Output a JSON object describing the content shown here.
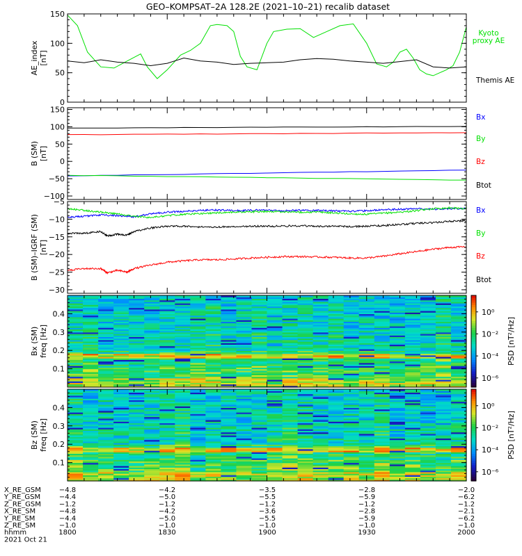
{
  "title": "GEO–KOMPSAT–2A 128.2E (2021–10–21) recalib dataset",
  "colors": {
    "black": "#000000",
    "blue": "#0000ff",
    "green": "#00e000",
    "red": "#ff0000"
  },
  "chart_data": [
    {
      "type": "line",
      "panel": "ae",
      "ylabel": [
        "AE_index",
        "[nT]"
      ],
      "ylim": [
        0,
        150
      ],
      "yticks": [
        "0",
        "50",
        "100",
        "150"
      ],
      "xlim": [
        0,
        120
      ],
      "series": [
        {
          "name": "Kyoto proxy AE",
          "label_lines": [
            "Kyoto",
            "proxy AE"
          ],
          "color": "#00e000",
          "x": [
            0,
            3,
            6,
            10,
            14,
            18,
            22,
            24,
            27,
            30,
            34,
            37,
            40,
            43,
            45,
            48,
            50,
            52,
            54,
            57,
            60,
            62,
            66,
            70,
            74,
            78,
            82,
            86,
            90,
            93,
            96,
            98,
            100,
            102,
            104,
            106,
            108,
            110,
            112,
            114,
            116,
            118,
            120
          ],
          "y": [
            148,
            130,
            85,
            60,
            58,
            70,
            82,
            60,
            40,
            55,
            80,
            88,
            100,
            130,
            132,
            130,
            120,
            78,
            60,
            55,
            100,
            120,
            124,
            125,
            110,
            120,
            130,
            133,
            100,
            65,
            60,
            68,
            85,
            90,
            75,
            55,
            48,
            45,
            50,
            55,
            62,
            85,
            128
          ]
        },
        {
          "name": "Themis AE",
          "label_lines": [
            "Themis AE"
          ],
          "color": "#000000",
          "x": [
            0,
            5,
            10,
            15,
            20,
            25,
            30,
            35,
            40,
            45,
            50,
            55,
            60,
            65,
            70,
            75,
            80,
            85,
            90,
            95,
            100,
            105,
            110,
            115,
            120
          ],
          "y": [
            70,
            67,
            72,
            68,
            66,
            62,
            66,
            75,
            70,
            68,
            64,
            66,
            67,
            68,
            72,
            74,
            73,
            70,
            68,
            66,
            69,
            72,
            60,
            58,
            60
          ]
        }
      ]
    },
    {
      "type": "line",
      "panel": "bsm",
      "ylabel": [
        "B (SM)",
        "[nT]"
      ],
      "ylim": [
        -100,
        150
      ],
      "yticks": [
        "−100",
        "−50",
        "0",
        "50",
        "100",
        "150"
      ],
      "xlim": [
        0,
        120
      ],
      "series": [
        {
          "name": "Bx",
          "color": "#0000ff",
          "x": [
            0,
            120
          ],
          "y": [
            -42,
            -25
          ]
        },
        {
          "name": "By",
          "color": "#00e000",
          "x": [
            0,
            120
          ],
          "y": [
            -40,
            -54
          ]
        },
        {
          "name": "Bz",
          "color": "#ff0000",
          "x": [
            0,
            120
          ],
          "y": [
            77,
            83
          ]
        },
        {
          "name": "Btot",
          "color": "#000000",
          "x": [
            0,
            120
          ],
          "y": [
            96,
            101
          ]
        }
      ]
    },
    {
      "type": "line",
      "panel": "bigrf",
      "ylabel": [
        "B (SM)–IGRF (SM)",
        "[nT]"
      ],
      "ylim": [
        -31,
        -5
      ],
      "yticks": [
        "−30",
        "−25",
        "−20",
        "−15",
        "−10",
        "−5"
      ],
      "xlim": [
        0,
        120
      ],
      "series": [
        {
          "name": "Bx",
          "color": "#0000ff",
          "x": [
            0,
            5,
            10,
            15,
            20,
            25,
            30,
            35,
            40,
            45,
            50,
            55,
            60,
            65,
            70,
            75,
            80,
            85,
            90,
            95,
            100,
            105,
            110,
            115,
            120
          ],
          "y": [
            -9.5,
            -9.2,
            -8.8,
            -9,
            -9.3,
            -8.5,
            -8,
            -7.8,
            -7.5,
            -7.4,
            -7.6,
            -7.5,
            -7.4,
            -7.6,
            -7.5,
            -7.5,
            -7.6,
            -7.8,
            -7.6,
            -7.3,
            -7.2,
            -7,
            -7.2,
            -7,
            -7
          ]
        },
        {
          "name": "By",
          "color": "#00e000",
          "x": [
            0,
            5,
            10,
            15,
            20,
            25,
            30,
            35,
            40,
            45,
            50,
            55,
            60,
            65,
            70,
            75,
            80,
            85,
            90,
            95,
            100,
            105,
            110,
            115,
            120
          ],
          "y": [
            -7,
            -7.5,
            -8,
            -8.5,
            -9.2,
            -9.5,
            -9,
            -8.6,
            -8.4,
            -8.2,
            -8,
            -7.9,
            -7.8,
            -7.9,
            -8,
            -8,
            -8.2,
            -8.5,
            -8.6,
            -8.3,
            -8,
            -7.6,
            -7,
            -6.8,
            -7
          ]
        },
        {
          "name": "Bz",
          "color": "#ff0000",
          "x": [
            0,
            5,
            10,
            12,
            15,
            18,
            20,
            25,
            30,
            35,
            40,
            45,
            50,
            55,
            60,
            65,
            70,
            75,
            80,
            85,
            90,
            95,
            100,
            105,
            110,
            115,
            120
          ],
          "y": [
            -24.5,
            -24,
            -24,
            -25.2,
            -24.5,
            -25,
            -24,
            -23,
            -22.2,
            -21.8,
            -21.5,
            -21.5,
            -21.3,
            -21,
            -20.8,
            -20.6,
            -20.6,
            -20.7,
            -20.8,
            -21,
            -21,
            -20.5,
            -19.8,
            -19.2,
            -18.5,
            -18,
            -17.8
          ]
        },
        {
          "name": "Btot",
          "color": "#000000",
          "x": [
            0,
            5,
            10,
            12,
            15,
            18,
            20,
            25,
            30,
            35,
            40,
            45,
            50,
            55,
            60,
            65,
            70,
            75,
            80,
            85,
            90,
            95,
            100,
            105,
            110,
            115,
            120
          ],
          "y": [
            -14,
            -14,
            -13.5,
            -14.8,
            -14.2,
            -14.5,
            -13.5,
            -12.5,
            -12,
            -12,
            -12.2,
            -12.2,
            -12.1,
            -12,
            -12,
            -11.9,
            -11.9,
            -12,
            -12,
            -12.1,
            -12,
            -11.8,
            -11.5,
            -11.2,
            -11,
            -10.6,
            -10.4
          ]
        }
      ]
    },
    {
      "type": "heatmap",
      "panel": "bxspec",
      "ylabel": [
        "Bx (SM)",
        "freq [Hz]"
      ],
      "ylim": [
        0,
        0.5
      ],
      "yticks": [
        "0.1",
        "0.2",
        "0.3",
        "0.4"
      ],
      "colorbar": {
        "label": "PSD [nT²/Hz]",
        "ticks": [
          "10⁰",
          "10⁻²",
          "10⁻⁴",
          "10⁻⁶"
        ]
      }
    },
    {
      "type": "heatmap",
      "panel": "bzspec",
      "ylabel": [
        "Bz (SM)",
        "freq [Hz]"
      ],
      "ylim": [
        0,
        0.5
      ],
      "yticks": [
        "0.1",
        "0.2",
        "0.3",
        "0.4"
      ],
      "colorbar": {
        "label": "PSD [nT²/Hz]",
        "ticks": [
          "10⁰",
          "10⁻²",
          "10⁻⁴",
          "10⁻⁶"
        ]
      }
    }
  ],
  "ephemeris": {
    "rows": [
      {
        "label": "X_RE_GSM",
        "values": [
          "−4.8",
          "−4.2",
          "−3.5",
          "−2.8",
          "−2.0"
        ]
      },
      {
        "label": "Y_RE_GSM",
        "values": [
          "−4.4",
          "−5.0",
          "−5.5",
          "−5.9",
          "−6.2"
        ]
      },
      {
        "label": "Z_RE_GSM",
        "values": [
          "−1.2",
          "−1.2",
          "−1.2",
          "−1.2",
          "−1.2"
        ]
      },
      {
        "label": "X_RE_SM",
        "values": [
          "−4.8",
          "−4.2",
          "−3.6",
          "−2.8",
          "−2.1"
        ]
      },
      {
        "label": "Y_RE_SM",
        "values": [
          "−4.4",
          "−5.0",
          "−5.5",
          "−5.9",
          "−6.2"
        ]
      },
      {
        "label": "Z_RE_SM",
        "values": [
          "−1.0",
          "−1.0",
          "−1.0",
          "−1.0",
          "−1.0"
        ]
      },
      {
        "label": "hhmm",
        "values": [
          "1800",
          "1830",
          "1900",
          "1930",
          "2000"
        ]
      }
    ],
    "date": "2021 Oct 21"
  }
}
